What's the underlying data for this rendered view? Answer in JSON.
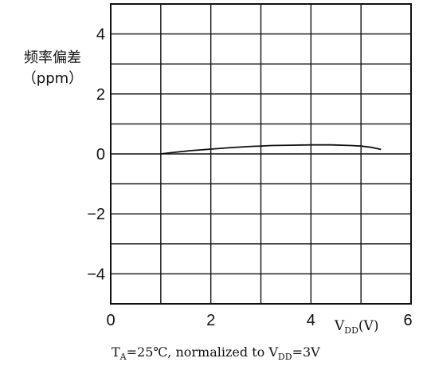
{
  "chart_data": {
    "type": "line",
    "ylabel": {
      "line1": "频率偏差",
      "line2": "（ppm）"
    },
    "xlabel": {
      "main": "V",
      "sub": "DD",
      "unit": "(V)"
    },
    "xlim": [
      0,
      6
    ],
    "ylim": [
      -5,
      5
    ],
    "xticks": [
      0,
      2,
      4,
      6
    ],
    "yticks": [
      4,
      2,
      0,
      -2,
      -4
    ],
    "grid": true,
    "series": [
      {
        "x": [
          1.0,
          1.2,
          1.6,
          2.0,
          2.4,
          2.8,
          3.0,
          3.2,
          3.6,
          4.0,
          4.4,
          4.8,
          5.0,
          5.2,
          5.4
        ],
        "y": [
          0.0,
          0.04,
          0.11,
          0.16,
          0.21,
          0.25,
          0.26,
          0.28,
          0.29,
          0.3,
          0.3,
          0.28,
          0.26,
          0.22,
          0.15
        ]
      }
    ],
    "note": {
      "T": "T",
      "T_sub": "A",
      "text1": "=25℃, normalized to V",
      "V_sub": "DD",
      "text2": "=3V"
    }
  }
}
